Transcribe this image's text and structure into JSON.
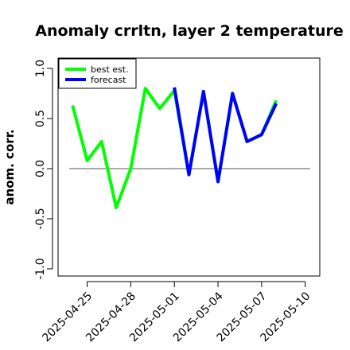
{
  "chart_data": {
    "type": "line",
    "title": "Anomaly crrltn, layer 2 temperature",
    "xlabel": "",
    "ylabel": "anom. corr.",
    "ylim": [
      -1.0,
      1.0
    ],
    "yticks": [
      -1.0,
      -0.5,
      0.0,
      0.5,
      1.0
    ],
    "ytick_labels": [
      "-1.0",
      "-0.5",
      "0.0",
      "0.5",
      "1.0"
    ],
    "xlim": [
      "2025-04-23",
      "2025-05-11"
    ],
    "xticks": [
      "2025-04-25",
      "2025-04-28",
      "2025-05-01",
      "2025-05-04",
      "2025-05-07",
      "2025-05-10"
    ],
    "highlighted_xtick": "2025-05-01",
    "highlight_color": "#228B22",
    "reference_line": {
      "y": 0.0,
      "color": "#555555"
    },
    "legend": {
      "position": "top-left",
      "entries": [
        "best est.",
        "forecast"
      ]
    },
    "series": [
      {
        "name": "best est.",
        "color": "#00FF00",
        "x": [
          "2025-04-24",
          "2025-04-25",
          "2025-04-26",
          "2025-04-27",
          "2025-04-28",
          "2025-04-29",
          "2025-04-30",
          "2025-05-01",
          "2025-05-02",
          "2025-05-03",
          "2025-05-04",
          "2025-05-05",
          "2025-05-06",
          "2025-05-07",
          "2025-05-08"
        ],
        "values": [
          0.63,
          0.08,
          0.27,
          -0.39,
          0.0,
          0.8,
          0.6,
          0.78,
          -0.06,
          0.77,
          -0.13,
          0.75,
          0.27,
          0.34,
          0.68
        ]
      },
      {
        "name": "forecast",
        "color": "#0000FF",
        "x": [
          "2025-05-01",
          "2025-05-02",
          "2025-05-03",
          "2025-05-04",
          "2025-05-05",
          "2025-05-06",
          "2025-05-07",
          "2025-05-08"
        ],
        "values": [
          0.81,
          -0.06,
          0.77,
          -0.13,
          0.75,
          0.27,
          0.34,
          0.65
        ]
      }
    ]
  }
}
